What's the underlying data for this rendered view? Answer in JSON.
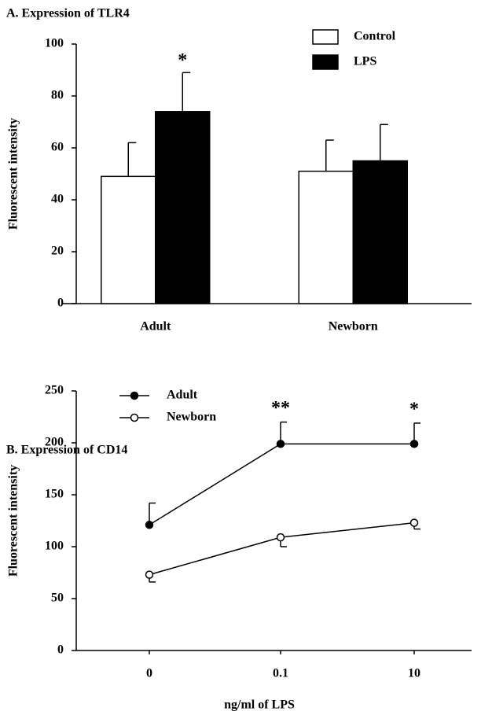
{
  "chart_data": [
    {
      "type": "bar",
      "title": "A. Expression of TLR4",
      "y_label": "Fluorescent intensity",
      "categories": [
        "Adult",
        "Newborn"
      ],
      "series": [
        {
          "name": "Control",
          "color": "#ffffff",
          "values": [
            49,
            51
          ],
          "errors": [
            13,
            12
          ],
          "error_bar": "up"
        },
        {
          "name": "LPS",
          "color": "#000000",
          "values": [
            74,
            55
          ],
          "errors": [
            15,
            14
          ],
          "error_bar": "up",
          "annotations": [
            "*",
            null
          ]
        }
      ],
      "ylim": [
        0,
        100
      ],
      "yticks": [
        0,
        20,
        40,
        60,
        80,
        100
      ],
      "legend": "top-right"
    },
    {
      "type": "line",
      "title": "B. Expression of CD14",
      "y_label": "Fluorescent intensity",
      "x_label": "ng/ml of LPS",
      "categories": [
        "0",
        "0.1",
        "10"
      ],
      "series": [
        {
          "name": "Adult",
          "color": "#000000",
          "values": [
            121,
            199,
            199
          ],
          "errors": [
            21,
            21,
            20
          ],
          "error_bar": "up",
          "annotations": [
            null,
            "**",
            "*"
          ]
        },
        {
          "name": "Newborn",
          "color": "#ffffff",
          "values": [
            73,
            109,
            123
          ],
          "errors": [
            7,
            9,
            6
          ],
          "error_bar": "down"
        }
      ],
      "ylim": [
        0,
        250
      ],
      "yticks": [
        0,
        50,
        100,
        150,
        200,
        250
      ],
      "legend": "top-left"
    }
  ]
}
